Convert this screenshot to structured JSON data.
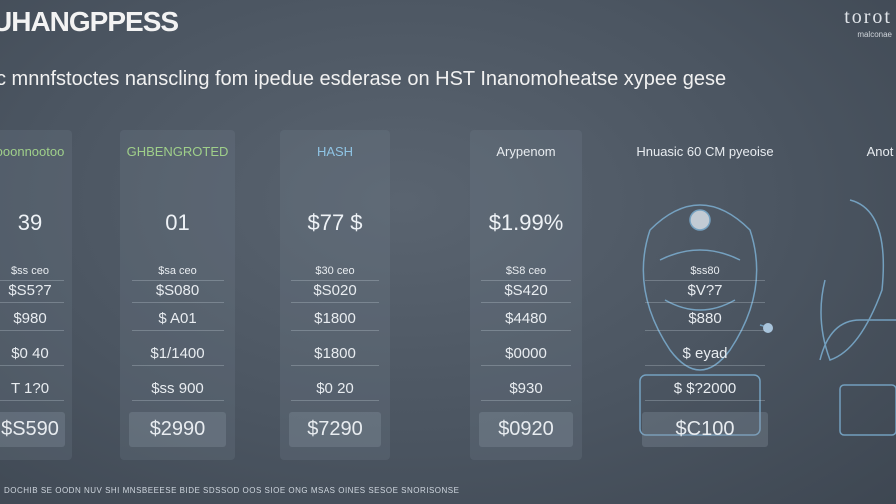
{
  "header": {
    "title": "UHANGPPESS",
    "brand": "torot",
    "brand_sub": "malconae"
  },
  "subtitle": "c mnnfstoctes nanscling fom ipedue esderase on HST Inanomoheatse xypee gese",
  "columns": [
    {
      "header": "ooonnootoo",
      "price": "39",
      "rows": [
        "$ss ceo",
        "$S5?7",
        "$980",
        "$0 40",
        "T 1?0"
      ],
      "total": "$S590"
    },
    {
      "header": "GHBENGROTED",
      "price": "01",
      "rows": [
        "$sa ceo",
        "$S080",
        "$ A01",
        "$1/1400",
        "$ss 900"
      ],
      "total": "$2990"
    },
    {
      "header": "HASH",
      "price": "$77 $",
      "rows": [
        "$30 ceo",
        "$S020",
        "$1800",
        "$1800",
        "$0 20"
      ],
      "total": "$7290"
    },
    {
      "header": "Arypenom",
      "price": "$1.99%",
      "rows": [
        "$S8 ceo",
        "$S420",
        "$4480",
        "$0000",
        "$930"
      ],
      "total": "$0920"
    },
    {
      "header": "Hnuasic 60 CM pyeoise",
      "price": "",
      "rows": [
        "$ss80",
        "$V?7",
        "$880",
        "$ eyad",
        "$ $?2000"
      ],
      "total": "$C100"
    },
    {
      "header": "Anot",
      "price": "",
      "rows": [],
      "total": ""
    }
  ],
  "footer": "DOCHIB SE OODN NUV SHI MNSBEEESE BIDE SDSSOD OOS SIOE ONG MSAS OINES SESOE SNORISONSE"
}
